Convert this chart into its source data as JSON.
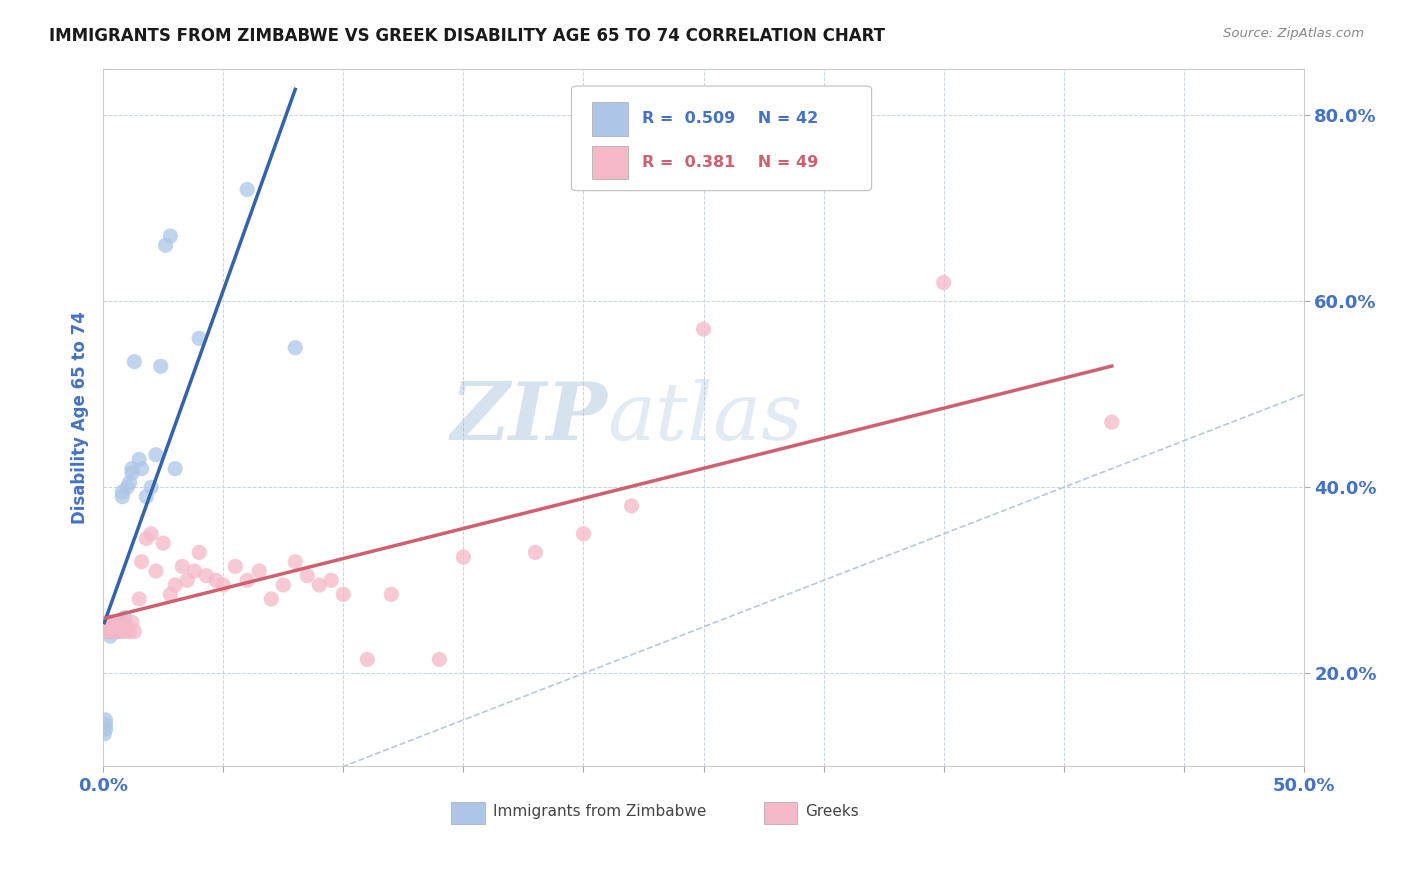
{
  "title": "IMMIGRANTS FROM ZIMBABWE VS GREEK DISABILITY AGE 65 TO 74 CORRELATION CHART",
  "source_text": "Source: ZipAtlas.com",
  "ylabel": "Disability Age 65 to 74",
  "xmin": 0.0,
  "xmax": 0.5,
  "ymin": 0.1,
  "ymax": 0.85,
  "x_ticks": [
    0.0,
    0.05,
    0.1,
    0.15,
    0.2,
    0.25,
    0.3,
    0.35,
    0.4,
    0.45,
    0.5
  ],
  "y_ticks": [
    0.2,
    0.4,
    0.6,
    0.8
  ],
  "y_tick_labels": [
    "20.0%",
    "40.0%",
    "60.0%",
    "80.0%"
  ],
  "blue_color": "#adc6e8",
  "pink_color": "#f5b8c8",
  "blue_line_color": "#3464a8",
  "pink_line_color": "#d06070",
  "diagonal_color": "#b8c8dc",
  "watermark_zip": "ZIP",
  "watermark_atlas": "atlas",
  "background_color": "#ffffff",
  "grid_color": "#c8d4e4",
  "title_color": "#1a1a1a",
  "axis_label_color": "#4472c4",
  "blue_scatter_x": [
    0.0005,
    0.001,
    0.001,
    0.001,
    0.002,
    0.002,
    0.002,
    0.003,
    0.003,
    0.003,
    0.003,
    0.004,
    0.004,
    0.004,
    0.005,
    0.005,
    0.005,
    0.006,
    0.006,
    0.007,
    0.007,
    0.007,
    0.008,
    0.008,
    0.009,
    0.01,
    0.011,
    0.012,
    0.012,
    0.013,
    0.015,
    0.016,
    0.018,
    0.02,
    0.022,
    0.024,
    0.026,
    0.028,
    0.03,
    0.04,
    0.06,
    0.08
  ],
  "blue_scatter_y": [
    0.135,
    0.15,
    0.145,
    0.14,
    0.245,
    0.25,
    0.255,
    0.24,
    0.245,
    0.25,
    0.255,
    0.25,
    0.255,
    0.245,
    0.25,
    0.255,
    0.245,
    0.25,
    0.245,
    0.255,
    0.25,
    0.245,
    0.39,
    0.395,
    0.26,
    0.4,
    0.405,
    0.42,
    0.415,
    0.535,
    0.43,
    0.42,
    0.39,
    0.4,
    0.435,
    0.53,
    0.66,
    0.67,
    0.42,
    0.56,
    0.72,
    0.55
  ],
  "pink_scatter_x": [
    0.001,
    0.002,
    0.003,
    0.004,
    0.005,
    0.005,
    0.006,
    0.007,
    0.008,
    0.009,
    0.01,
    0.011,
    0.012,
    0.013,
    0.015,
    0.016,
    0.018,
    0.02,
    0.022,
    0.025,
    0.028,
    0.03,
    0.033,
    0.035,
    0.038,
    0.04,
    0.043,
    0.047,
    0.05,
    0.055,
    0.06,
    0.065,
    0.07,
    0.075,
    0.08,
    0.085,
    0.09,
    0.095,
    0.1,
    0.11,
    0.12,
    0.14,
    0.15,
    0.18,
    0.2,
    0.22,
    0.25,
    0.35,
    0.42
  ],
  "pink_scatter_y": [
    0.245,
    0.245,
    0.255,
    0.25,
    0.245,
    0.25,
    0.25,
    0.245,
    0.255,
    0.245,
    0.25,
    0.245,
    0.255,
    0.245,
    0.28,
    0.32,
    0.345,
    0.35,
    0.31,
    0.34,
    0.285,
    0.295,
    0.315,
    0.3,
    0.31,
    0.33,
    0.305,
    0.3,
    0.295,
    0.315,
    0.3,
    0.31,
    0.28,
    0.295,
    0.32,
    0.305,
    0.295,
    0.3,
    0.285,
    0.215,
    0.285,
    0.215,
    0.325,
    0.33,
    0.35,
    0.38,
    0.57,
    0.62,
    0.47
  ],
  "legend_r_blue": "0.509",
  "legend_n_blue": "42",
  "legend_r_pink": "0.381",
  "legend_n_pink": "49"
}
